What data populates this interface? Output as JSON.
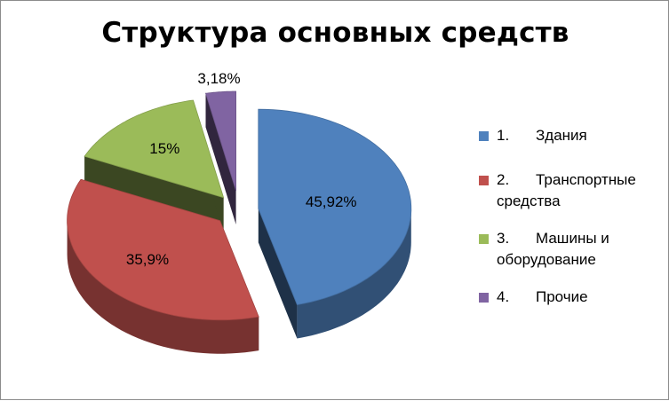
{
  "chart_data": {
    "type": "pie",
    "style": "3d-exploded",
    "title": "Структура основных средств",
    "categories": [
      "1.\tЗдания",
      "2.\tТранспортные средства",
      "3.\tМашины и оборудование",
      "4.\tПрочие"
    ],
    "series": [
      {
        "values": [
          45.92,
          35.9,
          15,
          3.18
        ]
      }
    ],
    "data_labels": [
      "45,92%",
      "35,9%",
      "15%",
      "3,18%"
    ],
    "colors": [
      "#4f81bd",
      "#c0504d",
      "#9bbb59",
      "#8064a2"
    ],
    "legend_position": "right",
    "legend": [
      {
        "num": "1.",
        "label": "Здания",
        "color": "#4f81bd"
      },
      {
        "num": "2.",
        "label": "Транспортные средства",
        "color": "#c0504d"
      },
      {
        "num": "3.",
        "label": "Машины и оборудование",
        "color": "#9bbb59"
      },
      {
        "num": "4.",
        "label": "Прочие",
        "color": "#8064a2"
      }
    ]
  }
}
